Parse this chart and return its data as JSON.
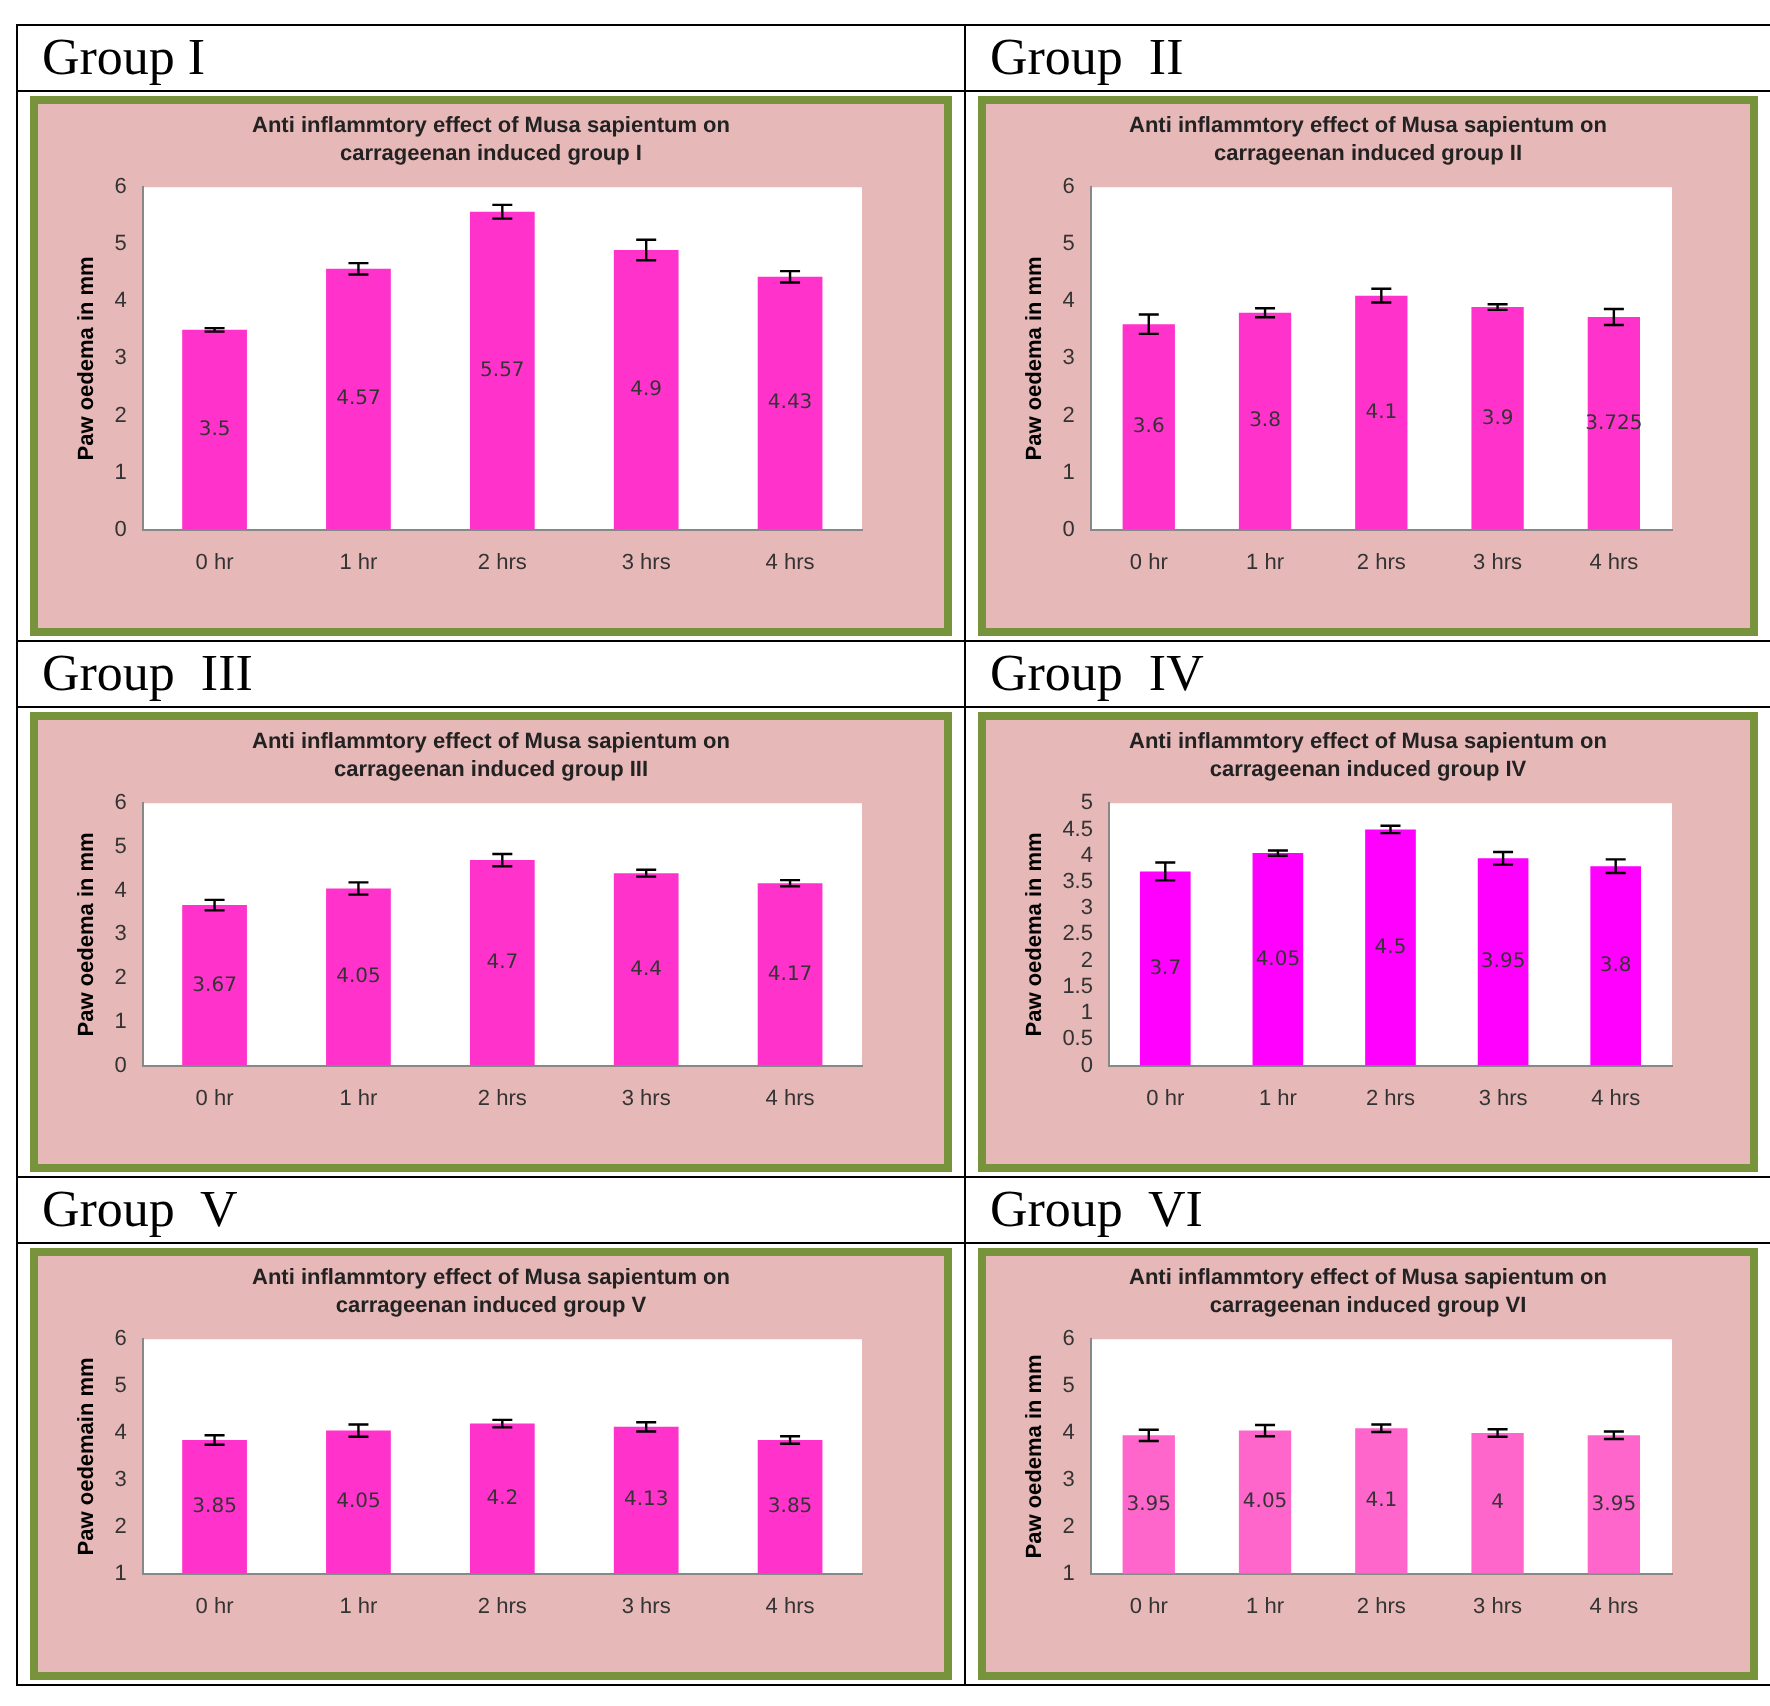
{
  "chart_data": [
    {
      "type": "bar",
      "title": "Group I",
      "subtitle": "Anti inflammtory effect of Musa sapientum on carrageenan induced group I",
      "ylabel": "Paw oedema in mm",
      "categories": [
        "0 hr",
        "1 hr",
        "2 hrs",
        "3 hrs",
        "4 hrs"
      ],
      "values": [
        3.5,
        4.57,
        5.57,
        4.9,
        4.43
      ],
      "errors": [
        0.03,
        0.1,
        0.12,
        0.18,
        0.1
      ],
      "color": "#ff33cc",
      "ylim": [
        0,
        6
      ],
      "yticks": [
        0,
        1,
        2,
        3,
        4,
        5,
        6
      ],
      "grid": false,
      "legend": false,
      "data_labels": true
    },
    {
      "type": "bar",
      "title": "Group  II",
      "subtitle": "Anti inflammtory effect of Musa sapientum on carrageenan induced group II",
      "ylabel": "Paw oedema in mm",
      "categories": [
        "0 hr",
        "1 hr",
        "2 hrs",
        "3 hrs",
        "4 hrs"
      ],
      "values": [
        3.6,
        3.8,
        4.1,
        3.9,
        3.725
      ],
      "errors": [
        0.17,
        0.08,
        0.12,
        0.05,
        0.14
      ],
      "color": "#ff33cc",
      "ylim": [
        0,
        6
      ],
      "yticks": [
        0,
        1,
        2,
        3,
        4,
        5,
        6
      ],
      "grid": false,
      "legend": false,
      "data_labels": true
    },
    {
      "type": "bar",
      "title": "Group  III",
      "subtitle": "Anti inflammtory effect of Musa sapientum on carrageenan induced group III",
      "ylabel": "Paw oedema in mm",
      "categories": [
        "0 hr",
        "1 hr",
        "2 hrs",
        "3 hrs",
        "4 hrs"
      ],
      "values": [
        3.67,
        4.05,
        4.7,
        4.4,
        4.17
      ],
      "errors": [
        0.12,
        0.14,
        0.14,
        0.08,
        0.07
      ],
      "color": "#ff33cc",
      "ylim": [
        0,
        6
      ],
      "yticks": [
        0,
        1,
        2,
        3,
        4,
        5,
        6
      ],
      "grid": false,
      "legend": false,
      "data_labels": true
    },
    {
      "type": "bar",
      "title": "Group  IV",
      "subtitle": "Anti inflammtory effect of Musa sapientum on carrageenan induced group IV",
      "ylabel": "Paw oedema in mm",
      "categories": [
        "0 hr",
        "1 hr",
        "2 hrs",
        "3 hrs",
        "4 hrs"
      ],
      "values": [
        3.7,
        4.05,
        4.5,
        3.95,
        3.8
      ],
      "errors": [
        0.17,
        0.05,
        0.07,
        0.12,
        0.13
      ],
      "color": "#ff00ff",
      "ylim": [
        0,
        5
      ],
      "yticks": [
        0,
        0.5,
        1,
        1.5,
        2,
        2.5,
        3,
        3.5,
        4,
        4.5,
        5
      ],
      "grid": false,
      "legend": false,
      "data_labels": true
    },
    {
      "type": "bar",
      "title": "Group  V",
      "subtitle": "Anti inflammtory effect of Musa sapientum on carrageenan induced group V",
      "ylabel": "Paw oedemain mm",
      "categories": [
        "0 hr",
        "1 hr",
        "2 hrs",
        "3 hrs",
        "4 hrs"
      ],
      "values": [
        3.85,
        4.05,
        4.2,
        4.13,
        3.85
      ],
      "errors": [
        0.1,
        0.13,
        0.08,
        0.1,
        0.08
      ],
      "color": "#ff33cc",
      "ylim": [
        1,
        6
      ],
      "yticks": [
        1,
        2,
        3,
        4,
        5,
        6
      ],
      "grid": false,
      "legend": false,
      "data_labels": true
    },
    {
      "type": "bar",
      "title": "Group  VI",
      "subtitle": "Anti inflammtory effect of Musa sapientum on carrageenan induced group VI",
      "ylabel": "Paw oedema in mm",
      "categories": [
        "0 hr",
        "1 hr",
        "2 hrs",
        "3 hrs",
        "4 hrs"
      ],
      "values": [
        3.95,
        4.05,
        4.1,
        4,
        3.95
      ],
      "errors": [
        0.12,
        0.12,
        0.08,
        0.08,
        0.08
      ],
      "color": "#ff66cc",
      "ylim": [
        1,
        6
      ],
      "yticks": [
        1,
        2,
        3,
        4,
        5,
        6
      ],
      "grid": false,
      "legend": false,
      "data_labels": true
    }
  ]
}
